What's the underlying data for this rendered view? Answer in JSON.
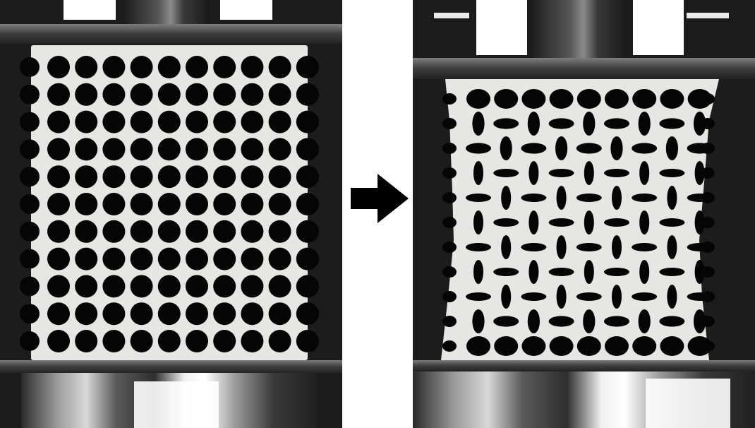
{
  "figure": {
    "panels": [
      {
        "name": "specimen-before-compression",
        "state": "undeformed",
        "hole_grid": {
          "rows": 11,
          "cols": 10
        },
        "hole_shape": "circular"
      },
      {
        "name": "specimen-after-compression",
        "state": "compressed",
        "hole_grid": {
          "rows": 11,
          "cols": 10
        },
        "hole_shape": "alternating-elliptical"
      }
    ],
    "arrow": {
      "direction": "right",
      "icon": "right-arrow-icon"
    },
    "colors": {
      "background": "#ffffff",
      "specimen": "#e6e6e4",
      "hole": "#050505",
      "machine": "#1c1c1c",
      "arrow": "#000000"
    }
  }
}
